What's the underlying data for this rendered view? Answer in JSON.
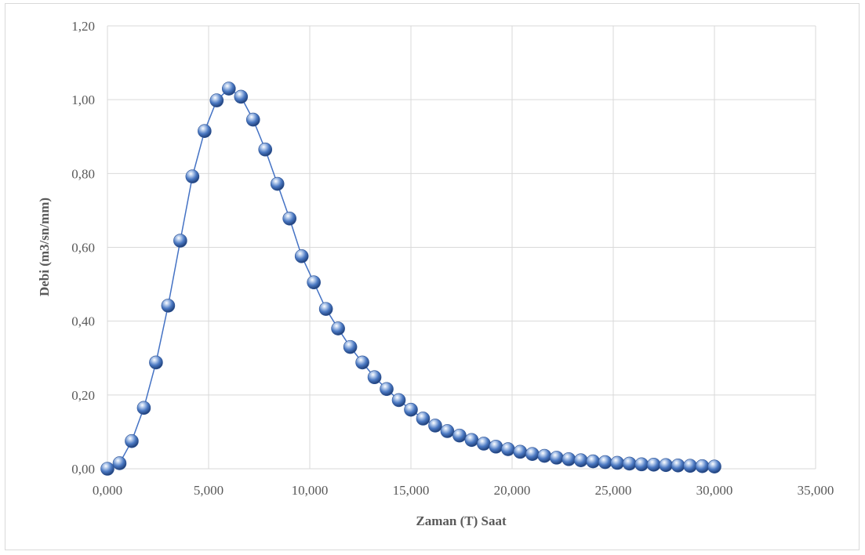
{
  "chart_data": {
    "type": "scatter",
    "xlabel": "Zaman (T) Saat",
    "ylabel": "Debi (m3/sn/mm)",
    "xlim": [
      0,
      35
    ],
    "ylim": [
      0,
      1.2
    ],
    "x_ticks": [
      0,
      5,
      10,
      15,
      20,
      25,
      30,
      35
    ],
    "y_ticks": [
      0,
      0.2,
      0.4,
      0.6,
      0.8,
      1.0,
      1.2
    ],
    "x_tick_labels": [
      "0,000",
      "5,000",
      "10,000",
      "15,000",
      "20,000",
      "25,000",
      "30,000",
      "35,000"
    ],
    "y_tick_labels": [
      "0,00",
      "0,20",
      "0,40",
      "0,60",
      "0,80",
      "1,00",
      "1,20"
    ],
    "grid": true,
    "legend": "none",
    "line_color": "#4472c4",
    "marker_color": "#4a78c2",
    "series": [
      {
        "x": [
          0.0,
          0.6,
          1.2,
          1.8,
          2.4,
          3.0,
          3.6,
          4.2,
          4.8,
          5.4,
          6.0,
          6.6,
          7.2,
          7.8,
          8.4,
          9.0,
          9.6,
          10.2,
          10.8,
          11.4,
          12.0,
          12.6,
          13.2,
          13.8,
          14.4,
          15.0,
          15.6,
          16.2,
          16.8,
          17.4,
          18.0,
          18.6,
          19.2,
          19.8,
          20.4,
          21.0,
          21.6,
          22.2,
          22.8,
          23.4,
          24.0,
          24.6,
          25.2,
          25.8,
          26.4,
          27.0,
          27.6,
          28.2,
          28.8,
          29.4,
          30.0
        ],
        "y": [
          0.0,
          0.015,
          0.075,
          0.165,
          0.288,
          0.442,
          0.618,
          0.792,
          0.915,
          0.998,
          1.03,
          1.008,
          0.946,
          0.865,
          0.772,
          0.678,
          0.576,
          0.505,
          0.433,
          0.38,
          0.33,
          0.288,
          0.248,
          0.216,
          0.186,
          0.16,
          0.136,
          0.117,
          0.102,
          0.09,
          0.078,
          0.068,
          0.06,
          0.053,
          0.046,
          0.04,
          0.035,
          0.03,
          0.026,
          0.023,
          0.02,
          0.018,
          0.016,
          0.014,
          0.012,
          0.011,
          0.01,
          0.009,
          0.008,
          0.007,
          0.006
        ]
      }
    ]
  }
}
